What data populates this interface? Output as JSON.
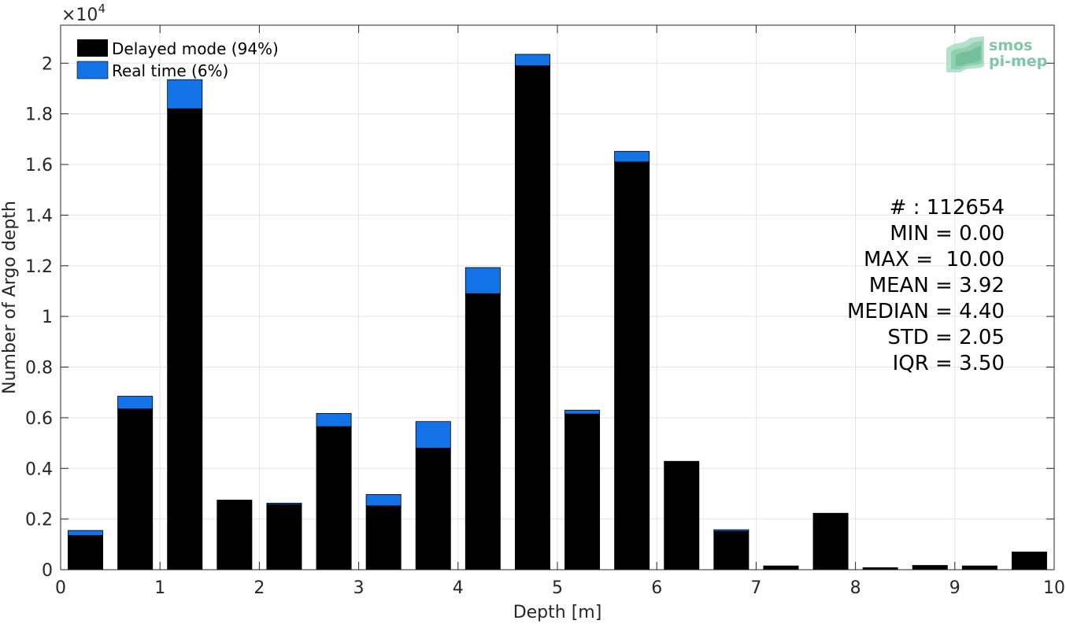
{
  "chart_data": {
    "type": "bar",
    "stacked": true,
    "xlabel": "Depth [m]",
    "ylabel": "Number of Argo depth",
    "y_exponent_label": "×10",
    "y_exponent_power": "4",
    "xlim": [
      0,
      10
    ],
    "ylim": [
      0,
      21500
    ],
    "x_ticks": [
      0,
      1,
      2,
      3,
      4,
      5,
      6,
      7,
      8,
      9,
      10
    ],
    "x_tick_labels": [
      "0",
      "1",
      "2",
      "3",
      "4",
      "5",
      "6",
      "7",
      "8",
      "9",
      "10"
    ],
    "y_ticks": [
      0,
      2000,
      4000,
      6000,
      8000,
      10000,
      12000,
      14000,
      16000,
      18000,
      20000
    ],
    "y_tick_labels": [
      "0",
      "0.2",
      "0.4",
      "0.6",
      "0.8",
      "1",
      "1.2",
      "1.4",
      "1.6",
      "1.8",
      "2"
    ],
    "grid": true,
    "legend_placement": "top-left",
    "x": [
      0.25,
      0.75,
      1.25,
      1.75,
      2.25,
      2.75,
      3.25,
      3.75,
      4.25,
      4.75,
      5.25,
      5.75,
      6.25,
      6.75,
      7.25,
      7.75,
      8.25,
      8.75,
      9.25,
      9.75
    ],
    "series": [
      {
        "name": "Delayed mode (94%)",
        "color": "#000000",
        "values": [
          1350,
          6350,
          18200,
          2750,
          2580,
          5650,
          2520,
          4800,
          10900,
          19900,
          6150,
          16100,
          4280,
          1520,
          150,
          2230,
          80,
          170,
          150,
          700
        ]
      },
      {
        "name": "Real time (6%)",
        "color": "#1373e6",
        "values": [
          200,
          500,
          1150,
          0,
          50,
          520,
          450,
          1050,
          1030,
          450,
          150,
          420,
          0,
          60,
          0,
          0,
          0,
          0,
          0,
          0
        ]
      }
    ],
    "bar_width": 0.35
  },
  "stats": {
    "count": "# : 112654",
    "min": "MIN = 0.00",
    "max": "MAX =  10.00",
    "mean": "MEAN = 3.92",
    "median": "MEDIAN = 4.40",
    "std": "STD = 2.05",
    "iqr": "IQR = 3.50"
  },
  "logo": {
    "line1": "smos",
    "line2": "pi-mep",
    "color": "#6dbb98"
  }
}
